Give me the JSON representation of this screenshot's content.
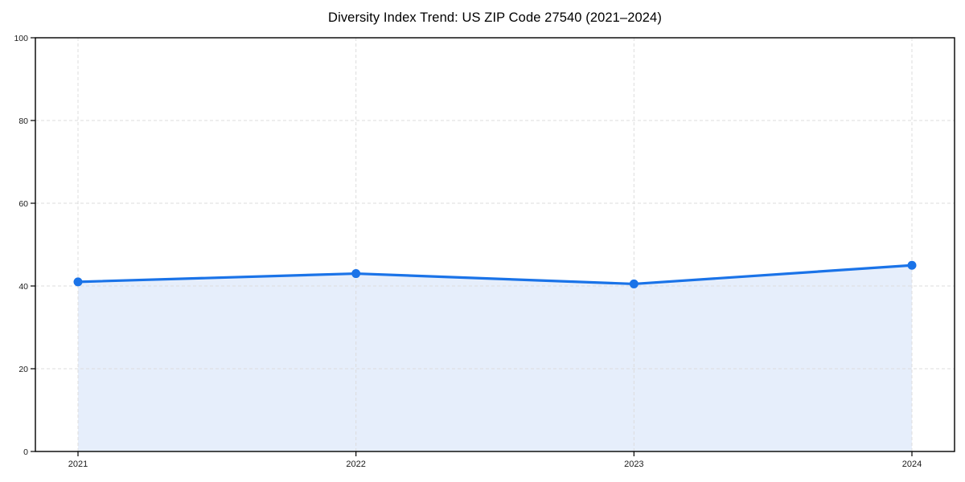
{
  "chart_data": {
    "type": "line",
    "title": "Diversity Index Trend: US ZIP Code 27540 (2021–2024)",
    "categories": [
      "2021",
      "2022",
      "2023",
      "2024"
    ],
    "values": [
      41,
      43,
      40.5,
      45
    ],
    "series_name": "Diversity Index",
    "xlabel": "",
    "ylabel": "",
    "ylim": [
      0,
      100
    ],
    "yticks": [
      0,
      20,
      40,
      60,
      80,
      100
    ],
    "grid": "dashed-both-axes",
    "legend": "none",
    "area_fill": true,
    "markers": true,
    "colors": {
      "line": "#1a73e8",
      "marker": "#1a73e8",
      "area": "#e6eefb",
      "grid": "#dcdcdc",
      "spine": "#000000",
      "tick_text": "#1a1a1a",
      "title_text": "#000000"
    }
  }
}
